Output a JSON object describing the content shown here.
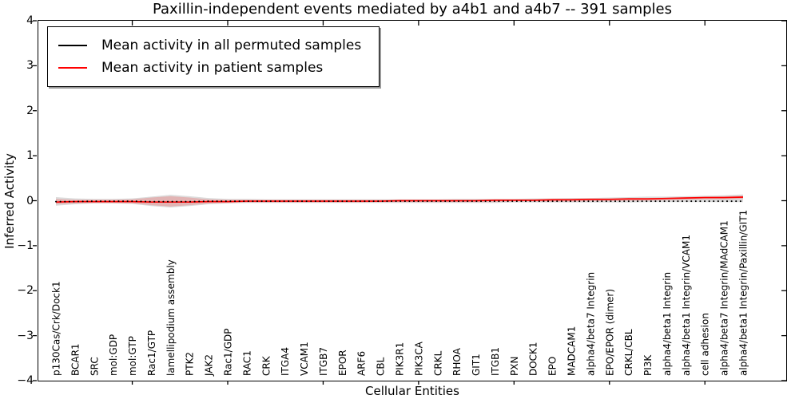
{
  "chart_data": {
    "type": "line",
    "title": "Paxillin-independent events mediated by a4b1 and a4b7 -- 391 samples",
    "xlabel": "Cellular Entities",
    "ylabel": "Inferred Activity",
    "sample_count": "391",
    "ylim": [
      -4,
      4
    ],
    "ytick_labels": [
      "4",
      "3",
      "2",
      "1",
      "0",
      "−1",
      "−2",
      "−3",
      "−4"
    ],
    "grid": false,
    "legend_position": "upper left",
    "categories": [
      "p130Cas/Crk/Dock1",
      "BCAR1",
      "SRC",
      "mol:GDP",
      "mol:GTP",
      "Rac1/GTP",
      "lamellipodium assembly",
      "PTK2",
      "JAK2",
      "Rac1/GDP",
      "RAC1",
      "CRK",
      "ITGA4",
      "VCAM1",
      "ITGB7",
      "EPOR",
      "ARF6",
      "CBL",
      "PIK3R1",
      "PIK3CA",
      "CRKL",
      "RHOA",
      "GIT1",
      "ITGB1",
      "PXN",
      "DOCK1",
      "EPO",
      "MADCAM1",
      "alpha4/beta7 Integrin",
      "EPO/EPOR (dimer)",
      "CRKL/CBL",
      "PI3K",
      "alpha4/beta1 Integrin",
      "alpha4/beta1 Integrin/VCAM1",
      "cell adhesion",
      "alpha4/beta7 Integrin/MAdCAM1",
      "alpha4/beta1 Integrin/Paxillin/GIT1"
    ],
    "series": [
      {
        "name": "Mean activity in all permuted samples",
        "color": "#000000",
        "style": "dotted",
        "values": [
          -0.02,
          -0.02,
          -0.01,
          -0.01,
          -0.01,
          -0.02,
          -0.02,
          -0.02,
          -0.01,
          -0.01,
          -0.01,
          -0.01,
          -0.01,
          -0.01,
          -0.01,
          -0.01,
          -0.01,
          -0.01,
          -0.01,
          -0.01,
          -0.01,
          -0.01,
          -0.01,
          -0.01,
          -0.01,
          -0.01,
          -0.01,
          -0.01,
          -0.01,
          -0.01,
          -0.01,
          -0.01,
          -0.01,
          -0.01,
          -0.01,
          -0.01,
          -0.01
        ]
      },
      {
        "name": "Mean activity in patient samples",
        "color": "#ff0000",
        "style": "solid",
        "values": [
          -0.03,
          -0.02,
          -0.02,
          -0.02,
          -0.02,
          -0.03,
          -0.03,
          -0.03,
          -0.02,
          -0.02,
          -0.01,
          -0.01,
          -0.01,
          -0.01,
          -0.01,
          -0.01,
          -0.01,
          -0.01,
          0.0,
          0.0,
          0.0,
          0.0,
          0.0,
          0.01,
          0.01,
          0.01,
          0.02,
          0.02,
          0.03,
          0.03,
          0.04,
          0.04,
          0.05,
          0.06,
          0.07,
          0.07,
          0.08
        ]
      }
    ],
    "bands": [
      {
        "name": "permuted-samples-range",
        "color": "rgba(128,128,128,0.28)",
        "upper": [
          0.08,
          0.05,
          0.04,
          0.04,
          0.05,
          0.09,
          0.13,
          0.1,
          0.06,
          0.04,
          0.04,
          0.03,
          0.03,
          0.03,
          0.03,
          0.03,
          0.03,
          0.03,
          0.03,
          0.03,
          0.03,
          0.04,
          0.04,
          0.04,
          0.04,
          0.05,
          0.05,
          0.06,
          0.06,
          0.07,
          0.08,
          0.09,
          0.09,
          0.1,
          0.11,
          0.12,
          0.14
        ],
        "lower": [
          -0.11,
          -0.08,
          -0.06,
          -0.06,
          -0.07,
          -0.12,
          -0.15,
          -0.12,
          -0.08,
          -0.06,
          -0.05,
          -0.05,
          -0.05,
          -0.05,
          -0.05,
          -0.05,
          -0.05,
          -0.05,
          -0.05,
          -0.05,
          -0.05,
          -0.05,
          -0.05,
          -0.05,
          -0.04,
          -0.04,
          -0.04,
          -0.04,
          -0.04,
          -0.04,
          -0.04,
          -0.03,
          -0.03,
          -0.03,
          -0.03,
          -0.03,
          -0.03
        ]
      },
      {
        "name": "patient-samples-range",
        "color": "rgba(255,0,0,0.18)",
        "upper": [
          0.04,
          0.02,
          0.02,
          0.02,
          0.03,
          0.07,
          0.1,
          0.07,
          0.03,
          0.02,
          0.02,
          0.02,
          0.02,
          0.02,
          0.02,
          0.02,
          0.02,
          0.02,
          0.02,
          0.02,
          0.02,
          0.02,
          0.02,
          0.03,
          0.03,
          0.03,
          0.04,
          0.04,
          0.05,
          0.05,
          0.06,
          0.06,
          0.07,
          0.08,
          0.09,
          0.1,
          0.11
        ],
        "lower": [
          -0.08,
          -0.06,
          -0.05,
          -0.05,
          -0.06,
          -0.1,
          -0.13,
          -0.1,
          -0.06,
          -0.05,
          -0.04,
          -0.04,
          -0.04,
          -0.04,
          -0.04,
          -0.04,
          -0.04,
          -0.03,
          -0.03,
          -0.03,
          -0.03,
          -0.03,
          -0.03,
          -0.03,
          -0.02,
          -0.02,
          -0.02,
          -0.02,
          -0.01,
          -0.01,
          0.0,
          0.0,
          0.01,
          0.02,
          0.03,
          0.03,
          0.04
        ]
      }
    ],
    "sparse_tick_indices": [
      4,
      9,
      14,
      19,
      24,
      29,
      34
    ]
  },
  "legend": {
    "entries": [
      {
        "label": "Mean activity in all permuted samples",
        "color": "#000000"
      },
      {
        "label": "Mean activity in patient samples",
        "color": "#ff0000"
      }
    ]
  }
}
